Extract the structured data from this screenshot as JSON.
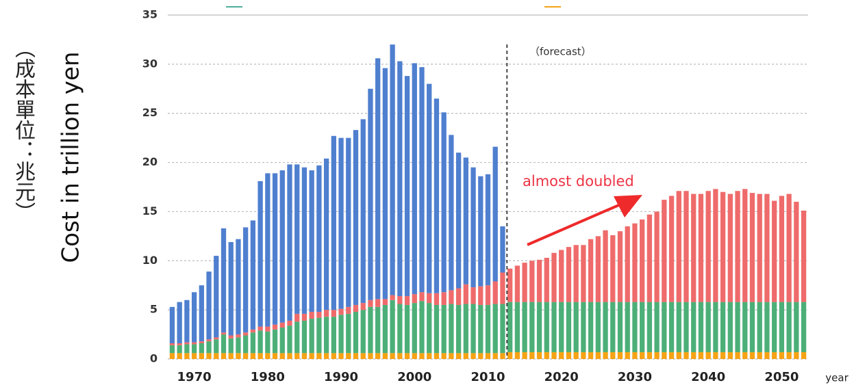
{
  "chart_data": {
    "type": "bar",
    "ylabel": "Cost in trillion yen",
    "ylabel_zh": "（成本單位：兆元）",
    "xlabel": "year",
    "annotations": [
      "（forecast）",
      "almost doubled"
    ],
    "x": [
      1967,
      1968,
      1969,
      1970,
      1971,
      1972,
      1973,
      1974,
      1975,
      1976,
      1977,
      1978,
      1979,
      1980,
      1981,
      1982,
      1983,
      1984,
      1985,
      1986,
      1987,
      1988,
      1989,
      1990,
      1991,
      1992,
      1993,
      1994,
      1995,
      1996,
      1997,
      1998,
      1999,
      2000,
      2001,
      2002,
      2003,
      2004,
      2005,
      2006,
      2007,
      2008,
      2009,
      2010,
      2011,
      2012,
      2013,
      2014,
      2015,
      2016,
      2017,
      2018,
      2019,
      2020,
      2021,
      2022,
      2023,
      2024,
      2025,
      2026,
      2027,
      2028,
      2029,
      2030,
      2031,
      2032,
      2033,
      2034,
      2035,
      2036,
      2037,
      2038,
      2039,
      2040,
      2041,
      2042,
      2043,
      2044,
      2045,
      2046,
      2047,
      2048,
      2049,
      2050,
      2051,
      2052,
      2053
    ],
    "series": [
      {
        "color": "#f5a315",
        "values": [
          0.6,
          0.6,
          0.6,
          0.6,
          0.6,
          0.6,
          0.6,
          0.6,
          0.6,
          0.6,
          0.6,
          0.6,
          0.6,
          0.6,
          0.6,
          0.6,
          0.6,
          0.6,
          0.6,
          0.6,
          0.6,
          0.6,
          0.6,
          0.6,
          0.6,
          0.6,
          0.6,
          0.6,
          0.6,
          0.6,
          0.6,
          0.6,
          0.6,
          0.6,
          0.6,
          0.6,
          0.6,
          0.6,
          0.6,
          0.6,
          0.6,
          0.6,
          0.6,
          0.6,
          0.6,
          0.6,
          0.7,
          0.7,
          0.7,
          0.7,
          0.7,
          0.7,
          0.7,
          0.7,
          0.7,
          0.7,
          0.7,
          0.7,
          0.7,
          0.7,
          0.7,
          0.7,
          0.7,
          0.7,
          0.7,
          0.7,
          0.7,
          0.7,
          0.7,
          0.7,
          0.7,
          0.7,
          0.7,
          0.7,
          0.7,
          0.7,
          0.7,
          0.7,
          0.7,
          0.7,
          0.7,
          0.7,
          0.7,
          0.7,
          0.7,
          0.7,
          0.7
        ]
      },
      {
        "color": "#4caf78",
        "values": [
          0.8,
          0.8,
          0.9,
          0.9,
          1.0,
          1.2,
          1.4,
          1.9,
          1.5,
          1.6,
          1.8,
          2.1,
          2.3,
          2.2,
          2.4,
          2.6,
          2.8,
          3.2,
          3.3,
          3.5,
          3.6,
          3.7,
          3.7,
          3.9,
          4.0,
          4.2,
          4.4,
          4.7,
          4.7,
          4.9,
          5.4,
          5.0,
          4.9,
          5.1,
          5.3,
          5.1,
          4.9,
          4.9,
          5.0,
          4.9,
          5.0,
          5.0,
          4.9,
          4.9,
          5.0,
          5.0,
          5.1,
          5.1,
          5.1,
          5.1,
          5.1,
          5.1,
          5.1,
          5.1,
          5.1,
          5.1,
          5.1,
          5.1,
          5.1,
          5.1,
          5.1,
          5.1,
          5.1,
          5.1,
          5.1,
          5.1,
          5.1,
          5.1,
          5.1,
          5.1,
          5.1,
          5.1,
          5.1,
          5.1,
          5.1,
          5.1,
          5.1,
          5.1,
          5.1,
          5.1,
          5.1,
          5.1,
          5.1,
          5.1,
          5.1,
          5.1,
          5.1
        ]
      },
      {
        "color": "#ef6b6b",
        "values": [
          0.2,
          0.2,
          0.2,
          0.2,
          0.2,
          0.2,
          0.2,
          0.2,
          0.3,
          0.3,
          0.3,
          0.3,
          0.4,
          0.5,
          0.5,
          0.5,
          0.5,
          0.8,
          0.7,
          0.7,
          0.6,
          0.7,
          0.7,
          0.6,
          0.7,
          0.7,
          0.7,
          0.7,
          0.8,
          0.6,
          0.5,
          0.8,
          0.9,
          0.9,
          0.9,
          1.0,
          1.2,
          1.3,
          1.4,
          1.7,
          2.0,
          1.7,
          1.9,
          2.0,
          2.3,
          3.2,
          3.4,
          3.7,
          4.0,
          4.2,
          4.3,
          4.5,
          5.0,
          5.3,
          5.6,
          5.8,
          5.8,
          6.4,
          6.7,
          7.3,
          6.8,
          7.2,
          7.7,
          8.0,
          8.4,
          8.9,
          9.2,
          10.4,
          10.8,
          11.3,
          11.3,
          11.0,
          11.0,
          11.3,
          11.5,
          11.2,
          11.0,
          11.3,
          11.5,
          11.1,
          11.0,
          11.0,
          10.3,
          10.8,
          11.0,
          10.2,
          9.3
        ]
      },
      {
        "color": "#4f7fcf",
        "values": [
          3.7,
          4.2,
          4.3,
          5.1,
          5.7,
          6.9,
          8.3,
          10.6,
          9.5,
          9.7,
          10.7,
          11.1,
          14.8,
          15.6,
          15.4,
          15.5,
          15.9,
          15.2,
          14.9,
          14.4,
          14.9,
          15.4,
          17.7,
          17.4,
          17.2,
          17.8,
          18.7,
          21.5,
          24.5,
          23.5,
          25.5,
          23.9,
          22.4,
          23.5,
          22.9,
          21.3,
          19.8,
          18.3,
          15.8,
          13.8,
          12.9,
          12.2,
          11.2,
          11.3,
          13.7,
          4.7,
          null,
          null,
          null,
          null,
          null,
          null,
          null,
          null,
          null,
          null,
          null,
          null,
          null,
          null,
          null,
          null,
          null,
          null,
          null,
          null,
          null,
          null,
          null,
          null,
          null,
          null,
          null,
          null,
          null,
          null,
          null,
          null,
          null,
          null,
          null,
          null,
          null,
          null,
          null,
          null,
          null
        ]
      }
    ],
    "xlim": [
      1966.4,
      2053.6
    ],
    "xticks": [
      1970,
      1980,
      1990,
      2000,
      2010,
      2020,
      2030,
      2040,
      2050
    ],
    "ylim": [
      0,
      35
    ],
    "yticks": [
      0,
      5,
      10,
      15,
      20,
      25,
      30,
      35
    ],
    "grid": true
  }
}
